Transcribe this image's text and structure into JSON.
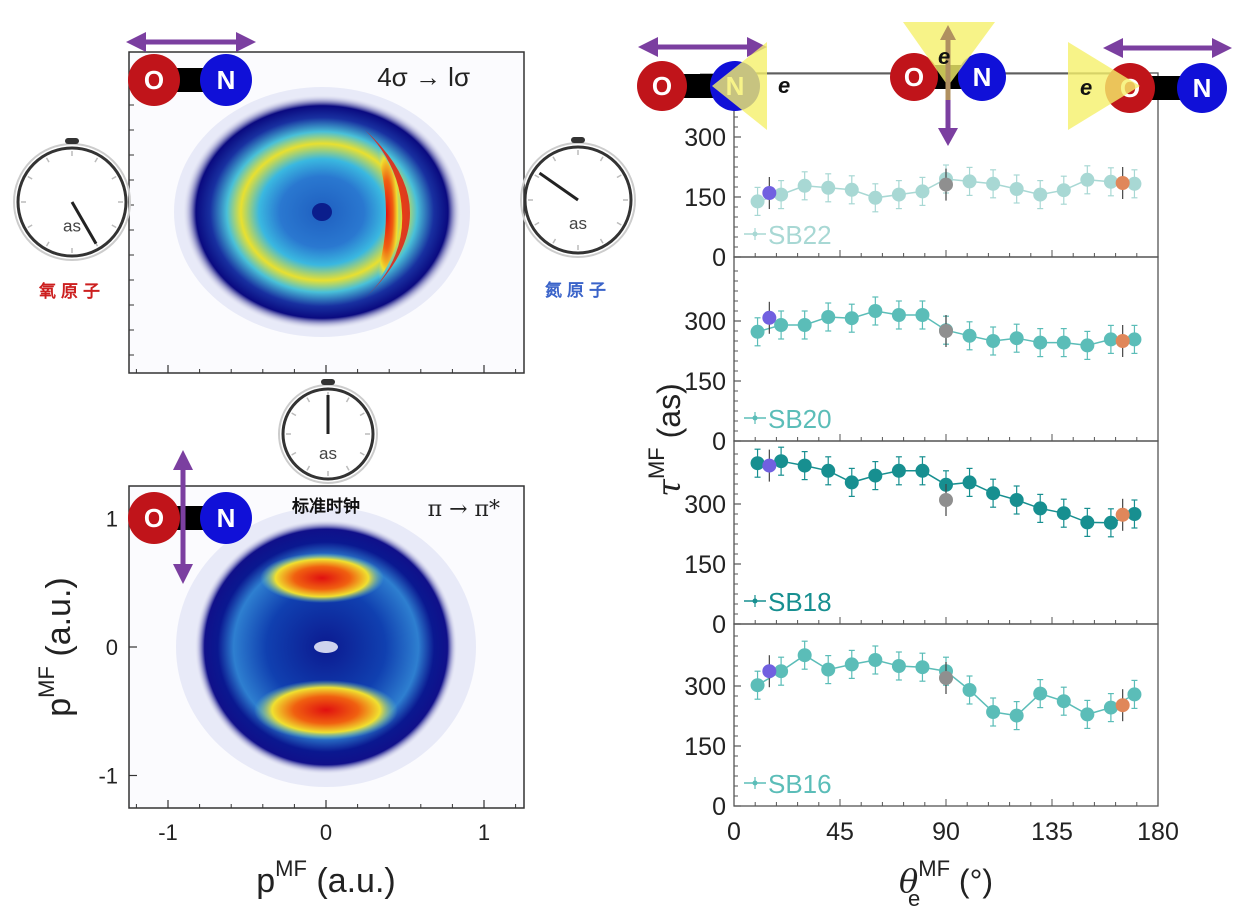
{
  "figure": {
    "left_top_panel": {
      "transition_label": "4σ → lσ",
      "molecule": {
        "atom1": "O",
        "atom2": "N",
        "polarization": "horizontal"
      }
    },
    "left_bottom_panel": {
      "transition_label": "π → π*",
      "clock_caption": "标准时钟",
      "molecule": {
        "atom1": "O",
        "atom2": "N",
        "polarization": "vertical"
      }
    },
    "clocks": [
      {
        "id": "oxygen",
        "unit_label": "as",
        "caption": "氧原子",
        "caption_color": "#cc1f1f"
      },
      {
        "id": "nitrogen",
        "unit_label": "as",
        "caption": "氮原子",
        "caption_color": "#3a63c9"
      },
      {
        "id": "reference",
        "unit_label": "as",
        "caption": "标准时钟",
        "caption_color": "#111111"
      }
    ],
    "right_molecules": [
      {
        "atoms": [
          "O",
          "N"
        ],
        "electron": "e",
        "emission": "along N side",
        "polarization": "horizontal"
      },
      {
        "atoms": [
          "O",
          "N"
        ],
        "electron": "e",
        "emission": "perpendicular",
        "polarization": "vertical"
      },
      {
        "atoms": [
          "O",
          "N"
        ],
        "electron": "e",
        "emission": "along O side",
        "polarization": "horizontal"
      }
    ],
    "colors": {
      "oxygen": "#c0141a",
      "nitrogen": "#1010d8",
      "polarization_arrow": "#7b3fa0",
      "cone": "#f5f06a",
      "sb22": "#a8d8d4",
      "sb20": "#5bbdb8",
      "sb18": "#178f90",
      "sb16": "#5bbdb8",
      "highlight_15": "#7160e0",
      "highlight_90": "#8f8f8f",
      "highlight_165": "#e0875a"
    }
  },
  "chart_data": [
    {
      "type": "heatmap",
      "title": "4σ → lσ",
      "xlabel": "",
      "ylabel": "",
      "xlim": [
        -1.25,
        1.25
      ],
      "ylim": [
        -1.0,
        1.0
      ],
      "description": "Molecular-frame photoelectron momentum distribution, ring with intensity maximum on +p∥ side (crescent)"
    },
    {
      "type": "heatmap",
      "title": "π → π*",
      "xlabel": "p∥MF (a.u.)",
      "ylabel": "p⊥MF (a.u.)",
      "x_ticks": [
        "-1",
        "0",
        "1"
      ],
      "y_ticks": [
        "1",
        "0",
        "-1"
      ],
      "xlim": [
        -1.25,
        1.25
      ],
      "ylim": [
        -1.25,
        1.25
      ],
      "description": "Molecular-frame photoelectron momentum distribution, ring with intensity maxima at ±p⊥ (two lobes)"
    },
    {
      "type": "scatter",
      "xlabel": "θeMF (°)",
      "ylabel": "τMF (as)",
      "xlim": [
        0,
        180
      ],
      "x_ticks": [
        "0",
        "45",
        "90",
        "135",
        "180"
      ],
      "ylim": [
        0,
        450
      ],
      "y_ticks": [
        "0",
        "150",
        "300"
      ],
      "x": [
        10,
        20,
        30,
        40,
        50,
        60,
        70,
        80,
        90,
        100,
        110,
        120,
        130,
        140,
        150,
        160,
        170
      ],
      "series": [
        {
          "name": "SB22",
          "values": [
            139,
            156,
            178,
            173,
            168,
            148,
            156,
            164,
            195,
            189,
            183,
            170,
            156,
            167,
            193,
            188,
            183
          ],
          "highlights": [
            {
              "x": 15,
              "y": 160,
              "color": "#7160e0"
            },
            {
              "x": 90,
              "y": 181,
              "color": "#8f8f8f"
            },
            {
              "x": 165,
              "y": 185,
              "color": "#e0875a"
            }
          ]
        },
        {
          "name": "SB20",
          "values": [
            273,
            290,
            290,
            310,
            307,
            325,
            315,
            315,
            277,
            263,
            250,
            257,
            246,
            246,
            239,
            254,
            254
          ],
          "highlights": [
            {
              "x": 15,
              "y": 308,
              "color": "#7160e0"
            },
            {
              "x": 90,
              "y": 275,
              "color": "#8f8f8f"
            },
            {
              "x": 165,
              "y": 250,
              "color": "#e0875a"
            }
          ]
        },
        {
          "name": "SB18",
          "values": [
            402,
            407,
            396,
            383,
            354,
            371,
            383,
            383,
            348,
            354,
            327,
            310,
            289,
            277,
            254,
            253,
            275
          ],
          "highlights": [
            {
              "x": 15,
              "y": 396,
              "color": "#7160e0"
            },
            {
              "x": 90,
              "y": 310,
              "color": "#8f8f8f"
            },
            {
              "x": 165,
              "y": 273,
              "color": "#e0875a"
            }
          ]
        },
        {
          "name": "SB16",
          "values": [
            302,
            337,
            377,
            341,
            354,
            365,
            350,
            347,
            337,
            290,
            235,
            226,
            281,
            262,
            229,
            246,
            279
          ],
          "highlights": [
            {
              "x": 15,
              "y": 337,
              "color": "#7160e0"
            },
            {
              "x": 90,
              "y": 320,
              "color": "#8f8f8f"
            },
            {
              "x": 165,
              "y": 252,
              "color": "#e0875a"
            }
          ]
        }
      ]
    }
  ]
}
